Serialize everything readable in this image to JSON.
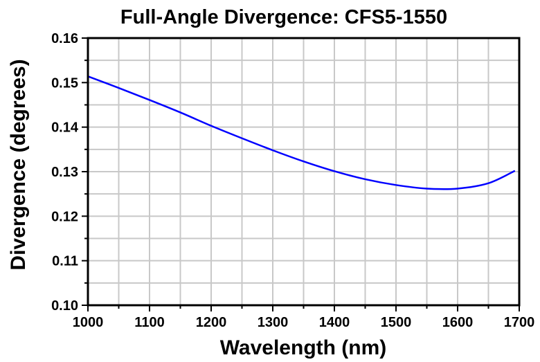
{
  "chart_data": {
    "type": "line",
    "title": "Full-Angle Divergence: CFS5-1550",
    "xlabel": "Wavelength (nm)",
    "ylabel": "Divergence (degrees)",
    "xlim": [
      1000,
      1700
    ],
    "ylim": [
      0.1,
      0.16
    ],
    "xticks": [
      "1000",
      "1100",
      "1200",
      "1300",
      "1400",
      "1500",
      "1600",
      "1700"
    ],
    "yticks": [
      "0.10",
      "0.11",
      "0.12",
      "0.13",
      "0.14",
      "0.15",
      "0.16"
    ],
    "grid": true,
    "line_color": "#0000ff",
    "series": [
      {
        "x": [
          1000,
          1050,
          1100,
          1150,
          1200,
          1250,
          1300,
          1350,
          1400,
          1450,
          1500,
          1550,
          1600,
          1650,
          1693
        ],
        "y": [
          0.1514,
          0.1488,
          0.1461,
          0.1433,
          0.1403,
          0.1375,
          0.1348,
          0.1323,
          0.1301,
          0.1283,
          0.127,
          0.1262,
          0.1262,
          0.1274,
          0.1302
        ]
      }
    ]
  }
}
